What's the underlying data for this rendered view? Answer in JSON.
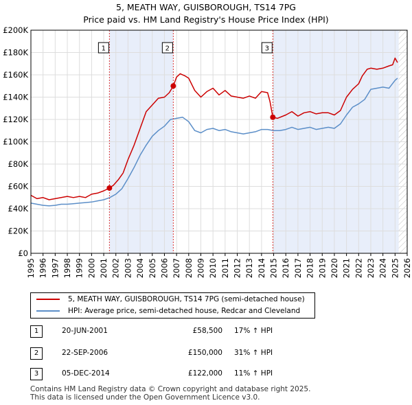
{
  "title_line1": "5, MEATH WAY, GUISBOROUGH, TS14 7PG",
  "title_line2": "Price paid vs. HM Land Registry's House Price Index (HPI)",
  "chart_data": {
    "type": "line",
    "title": "5, MEATH WAY, GUISBOROUGH, TS14 7PG",
    "subtitle": "Price paid vs. HM Land Registry's House Price Index (HPI)",
    "xlabel": "",
    "ylabel": "",
    "xlim": [
      1995,
      2026
    ],
    "ylim": [
      0,
      200000
    ],
    "y_ticks": [
      0,
      20000,
      40000,
      60000,
      80000,
      100000,
      120000,
      140000,
      160000,
      180000,
      200000
    ],
    "y_tick_labels": [
      "£0",
      "£20K",
      "£40K",
      "£60K",
      "£80K",
      "£100K",
      "£120K",
      "£140K",
      "£160K",
      "£180K",
      "£200K"
    ],
    "x_ticks": [
      1995,
      1996,
      1997,
      1998,
      1999,
      2000,
      2001,
      2002,
      2003,
      2004,
      2005,
      2006,
      2007,
      2008,
      2009,
      2010,
      2011,
      2012,
      2013,
      2014,
      2015,
      2016,
      2017,
      2018,
      2019,
      2020,
      2021,
      2022,
      2023,
      2024,
      2025,
      2026
    ],
    "x_tick_labels": [
      "1995",
      "1996",
      "1997",
      "1998",
      "1999",
      "2000",
      "2001",
      "2002",
      "2003",
      "2004",
      "2005",
      "2006",
      "2007",
      "2008",
      "2009",
      "2010",
      "2011",
      "2012",
      "2013",
      "2014",
      "2015",
      "2016",
      "2017",
      "2018",
      "2019",
      "2020",
      "2021",
      "2022",
      "2023",
      "2024",
      "2025",
      "2026"
    ],
    "grid": true,
    "shaded_periods": [
      [
        2001.47,
        2006.73
      ],
      [
        2014.93,
        2025.3
      ]
    ],
    "future_hatch_from": 2025.3,
    "series": [
      {
        "name": "5, MEATH WAY, GUISBOROUGH, TS14 7PG (semi-detached house)",
        "color": "#cc0000",
        "x": [
          1995,
          1995.5,
          1996,
          1996.5,
          1997,
          1997.5,
          1998,
          1998.5,
          1999,
          1999.5,
          2000,
          2000.5,
          2001,
          2001.47,
          2001.8,
          2002.2,
          2002.6,
          2003,
          2003.5,
          2004,
          2004.5,
          2005,
          2005.5,
          2006,
          2006.4,
          2006.73,
          2007,
          2007.3,
          2007.7,
          2008,
          2008.5,
          2009,
          2009.5,
          2010,
          2010.5,
          2011,
          2011.5,
          2012,
          2012.5,
          2013,
          2013.5,
          2014,
          2014.5,
          2014.7,
          2014.93,
          2015.3,
          2016,
          2016.5,
          2017,
          2017.5,
          2018,
          2018.5,
          2019,
          2019.5,
          2020,
          2020.5,
          2021,
          2021.5,
          2022,
          2022.3,
          2022.7,
          2023,
          2023.5,
          2024,
          2024.5,
          2024.8,
          2025,
          2025.2
        ],
        "y": [
          52000,
          49000,
          50000,
          48000,
          49000,
          50000,
          51000,
          50000,
          51000,
          50000,
          53000,
          54000,
          56000,
          58500,
          61000,
          66000,
          72000,
          84000,
          97000,
          112000,
          127000,
          133000,
          139000,
          140000,
          144000,
          150000,
          158000,
          161000,
          159000,
          157000,
          146000,
          140000,
          145000,
          148000,
          142000,
          146000,
          141000,
          140000,
          139000,
          141000,
          139000,
          145000,
          144000,
          136000,
          122000,
          121000,
          124000,
          127000,
          123000,
          126000,
          127000,
          125000,
          126000,
          126000,
          124000,
          128000,
          140000,
          147000,
          152000,
          159000,
          165000,
          166000,
          165000,
          166000,
          168000,
          169000,
          175000,
          171000
        ]
      },
      {
        "name": "HPI: Average price, semi-detached house, Redcar and Cleveland",
        "color": "#5b8ec8",
        "x": [
          1995,
          1995.5,
          1996,
          1996.5,
          1997,
          1997.5,
          1998,
          1998.5,
          1999,
          1999.5,
          2000,
          2000.5,
          2001,
          2001.5,
          2002,
          2002.5,
          2003,
          2003.5,
          2004,
          2004.5,
          2005,
          2005.5,
          2006,
          2006.5,
          2007,
          2007.5,
          2008,
          2008.5,
          2009,
          2009.5,
          2010,
          2010.5,
          2011,
          2011.5,
          2012,
          2012.5,
          2013,
          2013.5,
          2014,
          2014.5,
          2015,
          2015.5,
          2016,
          2016.5,
          2017,
          2017.5,
          2018,
          2018.5,
          2019,
          2019.5,
          2020,
          2020.5,
          2021,
          2021.5,
          2022,
          2022.5,
          2023,
          2023.5,
          2024,
          2024.5,
          2025,
          2025.2
        ],
        "y": [
          45000,
          44000,
          43000,
          42500,
          43000,
          44000,
          44000,
          44500,
          45000,
          45500,
          46000,
          47000,
          48000,
          50000,
          53000,
          58000,
          67000,
          77000,
          88000,
          97000,
          105000,
          110000,
          114000,
          120000,
          121000,
          122000,
          118000,
          110000,
          108000,
          111000,
          112000,
          110000,
          111000,
          109000,
          108000,
          107000,
          108000,
          109000,
          111000,
          111000,
          110000,
          110000,
          111000,
          113000,
          111000,
          112000,
          113000,
          111000,
          112000,
          113000,
          112000,
          116000,
          124000,
          131000,
          134000,
          138000,
          147000,
          148000,
          149000,
          148000,
          155000,
          157000
        ]
      }
    ],
    "sales": [
      {
        "label": "1",
        "x": 2001.47,
        "y": 58500
      },
      {
        "label": "2",
        "x": 2006.73,
        "y": 150000
      },
      {
        "label": "3",
        "x": 2014.93,
        "y": 122000
      }
    ]
  },
  "legend": {
    "property_label": "5, MEATH WAY, GUISBOROUGH, TS14 7PG (semi-detached house)",
    "hpi_label": "HPI: Average price, semi-detached house, Redcar and Cleveland",
    "property_color": "#cc0000",
    "hpi_color": "#5b8ec8"
  },
  "sales_table": [
    {
      "num": "1",
      "date": "20-JUN-2001",
      "price": "£58,500",
      "hpi": "17% ↑ HPI"
    },
    {
      "num": "2",
      "date": "22-SEP-2006",
      "price": "£150,000",
      "hpi": "31% ↑ HPI"
    },
    {
      "num": "3",
      "date": "05-DEC-2014",
      "price": "£122,000",
      "hpi": "11% ↑ HPI"
    }
  ],
  "footer": {
    "line1": "Contains HM Land Registry data © Crown copyright and database right 2025.",
    "line2": "This data is licensed under the Open Government Licence v3.0."
  }
}
